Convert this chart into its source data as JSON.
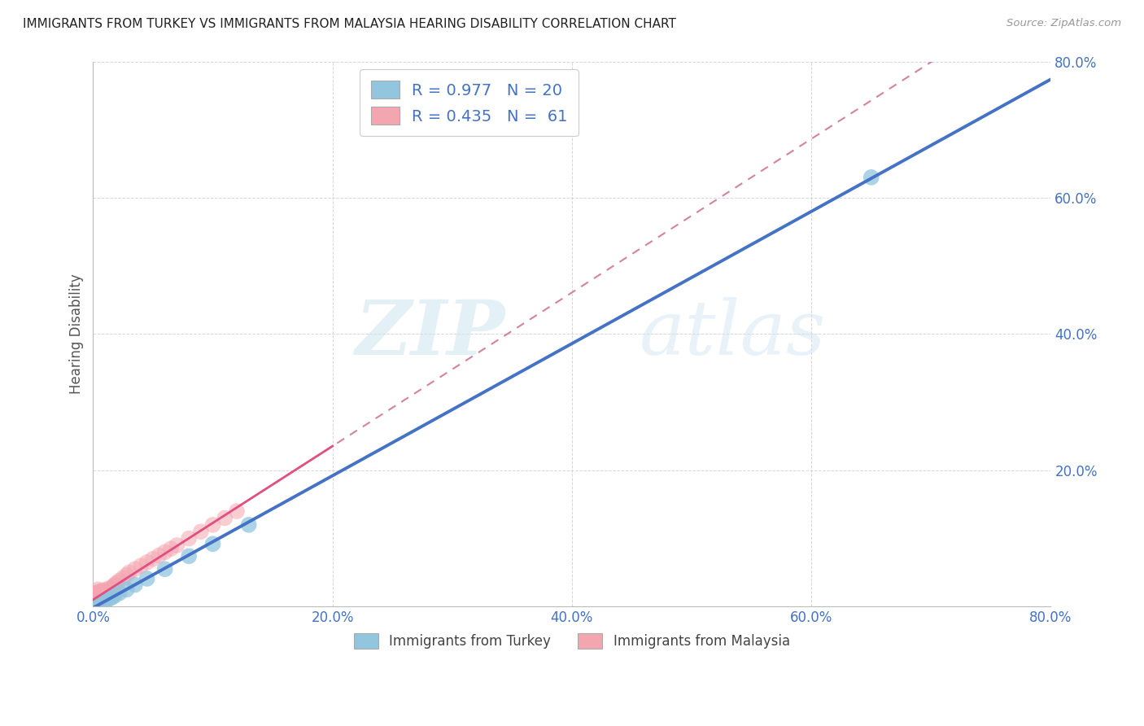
{
  "title": "IMMIGRANTS FROM TURKEY VS IMMIGRANTS FROM MALAYSIA HEARING DISABILITY CORRELATION CHART",
  "source": "Source: ZipAtlas.com",
  "ylabel": "Hearing Disability",
  "xlim": [
    0,
    0.8
  ],
  "ylim": [
    0,
    0.8
  ],
  "xticks": [
    0.0,
    0.2,
    0.4,
    0.6,
    0.8
  ],
  "yticks": [
    0.0,
    0.2,
    0.4,
    0.6,
    0.8
  ],
  "turkey_color": "#92C5DE",
  "turkey_line_color": "#4472C4",
  "malaysia_color": "#F4A6B0",
  "malaysia_line_solid_color": "#E05080",
  "malaysia_line_dash_color": "#D4849A",
  "turkey_R": 0.977,
  "turkey_N": 20,
  "malaysia_R": 0.435,
  "malaysia_N": 61,
  "legend_label_turkey": "Immigrants from Turkey",
  "legend_label_malaysia": "Immigrants from Malaysia",
  "watermark_part1": "ZIP",
  "watermark_part2": "atlas",
  "background_color": "#ffffff",
  "grid_color": "#cccccc",
  "tick_label_color": "#4472C4",
  "title_color": "#222222",
  "source_color": "#999999",
  "ylabel_color": "#555555",
  "turkey_x": [
    0.003,
    0.005,
    0.006,
    0.007,
    0.008,
    0.009,
    0.01,
    0.012,
    0.014,
    0.016,
    0.018,
    0.022,
    0.028,
    0.035,
    0.045,
    0.06,
    0.08,
    0.1,
    0.13,
    0.65
  ],
  "turkey_y": [
    0.002,
    0.004,
    0.005,
    0.006,
    0.007,
    0.008,
    0.009,
    0.011,
    0.012,
    0.014,
    0.016,
    0.02,
    0.025,
    0.032,
    0.041,
    0.055,
    0.074,
    0.092,
    0.12,
    0.63
  ],
  "malaysia_x": [
    0.001,
    0.001,
    0.001,
    0.002,
    0.002,
    0.002,
    0.002,
    0.003,
    0.003,
    0.003,
    0.003,
    0.004,
    0.004,
    0.004,
    0.004,
    0.004,
    0.005,
    0.005,
    0.005,
    0.005,
    0.006,
    0.006,
    0.006,
    0.007,
    0.007,
    0.007,
    0.008,
    0.008,
    0.008,
    0.009,
    0.009,
    0.01,
    0.01,
    0.011,
    0.011,
    0.012,
    0.012,
    0.013,
    0.014,
    0.015,
    0.016,
    0.017,
    0.018,
    0.02,
    0.022,
    0.025,
    0.028,
    0.03,
    0.035,
    0.04,
    0.045,
    0.05,
    0.055,
    0.06,
    0.065,
    0.07,
    0.08,
    0.09,
    0.1,
    0.11,
    0.12
  ],
  "malaysia_y": [
    0.005,
    0.008,
    0.012,
    0.006,
    0.01,
    0.014,
    0.018,
    0.007,
    0.011,
    0.015,
    0.02,
    0.008,
    0.012,
    0.016,
    0.02,
    0.025,
    0.009,
    0.013,
    0.017,
    0.022,
    0.01,
    0.015,
    0.02,
    0.012,
    0.017,
    0.022,
    0.013,
    0.018,
    0.024,
    0.015,
    0.02,
    0.016,
    0.022,
    0.018,
    0.024,
    0.02,
    0.026,
    0.022,
    0.024,
    0.026,
    0.028,
    0.03,
    0.032,
    0.035,
    0.038,
    0.042,
    0.046,
    0.05,
    0.055,
    0.06,
    0.065,
    0.07,
    0.075,
    0.08,
    0.085,
    0.09,
    0.1,
    0.11,
    0.12,
    0.13,
    0.14
  ]
}
